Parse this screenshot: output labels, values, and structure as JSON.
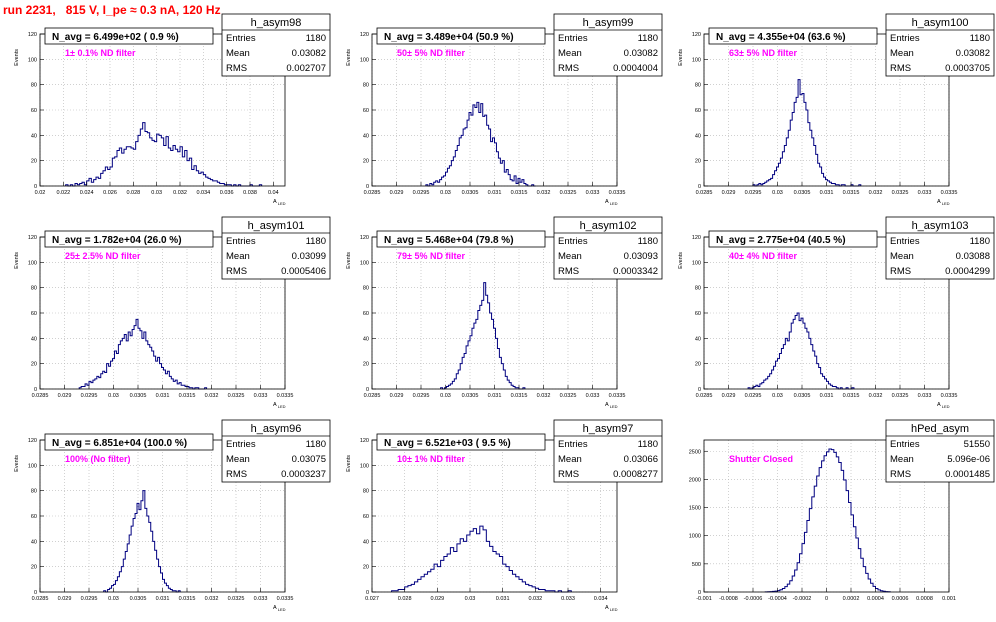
{
  "canvas_title": "run 2231,   815 V, I_pe ≈ 0.3 nA, 120 Hz",
  "colors": {
    "title": "#ff0000",
    "hist_line": "#000080",
    "filter_text": "#ff00ff",
    "grid": "#b4b4b4"
  },
  "chart_data": [
    {
      "type": "bar",
      "name": "h_asym98",
      "title": "N_avg = 6.499e+02 ( 0.9 %)",
      "annotation": "1± 0.1% ND filter",
      "stats": {
        "entries_label": "Entries",
        "entries": "1180",
        "mean_label": "Mean",
        "mean": "0.03082",
        "rms_label": "RMS",
        "rms": "0.002707"
      },
      "xlim": [
        0.02,
        0.041
      ],
      "ylim": [
        0,
        120
      ],
      "xticks": [
        0.02,
        0.022,
        0.024,
        0.026,
        0.028,
        0.03,
        0.032,
        0.034,
        0.036,
        0.038,
        0.04
      ],
      "xtick_labels": [
        "0.02",
        "0.022",
        "0.024",
        "0.026",
        "0.028",
        "0.03",
        "0.032",
        "0.034",
        "0.036",
        "0.038",
        "0.04"
      ],
      "yticks": [
        0,
        20,
        40,
        60,
        80,
        100,
        120
      ],
      "xlabel": "A_LED",
      "ylabel": "Events",
      "bin_start": 0.0222,
      "bin_width": 0.0002,
      "values": [
        1,
        0,
        1,
        0,
        2,
        1,
        2,
        3,
        1,
        4,
        6,
        3,
        5,
        7,
        6,
        10,
        12,
        15,
        13,
        15,
        22,
        23,
        28,
        30,
        26,
        29,
        31,
        31,
        30,
        29,
        35,
        40,
        45,
        50,
        43,
        42,
        38,
        36,
        35,
        41,
        40,
        38,
        32,
        39,
        30,
        28,
        32,
        29,
        27,
        31,
        23,
        28,
        20,
        22,
        13,
        16,
        12,
        10,
        11,
        9,
        7,
        6,
        5,
        4,
        4,
        3,
        2,
        2,
        1,
        1,
        1,
        0,
        1,
        0,
        1,
        0,
        0,
        0,
        0,
        1,
        0,
        0,
        0,
        1
      ]
    },
    {
      "type": "bar",
      "name": "h_asym99",
      "title": "N_avg = 3.489e+04 (50.9 %)",
      "annotation": "50± 5% ND filter",
      "stats": {
        "entries_label": "Entries",
        "entries": "1180",
        "mean_label": "Mean",
        "mean": "0.03082",
        "rms_label": "RMS",
        "rms": "0.0004004"
      },
      "xlim": [
        0.0285,
        0.0335
      ],
      "ylim": [
        0,
        120
      ],
      "xticks": [
        0.0285,
        0.029,
        0.0295,
        0.03,
        0.0305,
        0.031,
        0.0315,
        0.032,
        0.0325,
        0.033,
        0.0335
      ],
      "xtick_labels": [
        "0.0285",
        "0.029",
        "0.0295",
        "0.03",
        "0.0305",
        "0.031",
        "0.0315",
        "0.032",
        "0.0325",
        "0.033",
        "0.0335"
      ],
      "yticks": [
        0,
        20,
        40,
        60,
        80,
        100,
        120
      ],
      "xlabel": "A_LED",
      "ylabel": "Events",
      "bin_start": 0.0296,
      "bin_width": 4e-05,
      "values": [
        1,
        0,
        2,
        1,
        3,
        4,
        3,
        5,
        7,
        8,
        11,
        14,
        16,
        20,
        23,
        28,
        32,
        38,
        40,
        45,
        46,
        52,
        58,
        56,
        64,
        62,
        66,
        58,
        65,
        55,
        56,
        48,
        45,
        35,
        38,
        34,
        27,
        22,
        18,
        20,
        11,
        13,
        9,
        5,
        4,
        8,
        2,
        6,
        3,
        5,
        2,
        1,
        0,
        0,
        1,
        0
      ]
    },
    {
      "type": "bar",
      "name": "h_asym100",
      "title": "N_avg = 4.355e+04 (63.6 %)",
      "annotation": "63± 5% ND filter",
      "stats": {
        "entries_label": "Entries",
        "entries": "1180",
        "mean_label": "Mean",
        "mean": "0.03082",
        "rms_label": "RMS",
        "rms": "0.0003705"
      },
      "xlim": [
        0.0285,
        0.0335
      ],
      "ylim": [
        0,
        120
      ],
      "xticks": [
        0.0285,
        0.029,
        0.0295,
        0.03,
        0.0305,
        0.031,
        0.0315,
        0.032,
        0.0325,
        0.033,
        0.0335
      ],
      "xtick_labels": [
        "0.0285",
        "0.029",
        "0.0295",
        "0.03",
        "0.0305",
        "0.031",
        "0.0315",
        "0.032",
        "0.0325",
        "0.033",
        "0.0335"
      ],
      "yticks": [
        0,
        20,
        40,
        60,
        80,
        100,
        120
      ],
      "xlabel": "A_LED",
      "ylabel": "Events",
      "bin_start": 0.0295,
      "bin_width": 4e-05,
      "values": [
        1,
        0,
        1,
        2,
        1,
        2,
        3,
        4,
        5,
        6,
        9,
        12,
        15,
        18,
        22,
        27,
        32,
        38,
        44,
        52,
        58,
        66,
        70,
        84,
        72,
        73,
        66,
        60,
        50,
        44,
        38,
        32,
        25,
        18,
        15,
        10,
        7,
        5,
        4,
        3,
        2,
        2,
        1,
        1,
        0,
        1,
        1,
        0,
        0,
        0,
        1,
        0,
        0,
        0,
        1
      ]
    },
    {
      "type": "bar",
      "name": "h_asym101",
      "title": "N_avg = 1.782e+04 (26.0 %)",
      "annotation": "25± 2.5% ND filter",
      "stats": {
        "entries_label": "Entries",
        "entries": "1180",
        "mean_label": "Mean",
        "mean": "0.03099",
        "rms_label": "RMS",
        "rms": "0.0005406"
      },
      "xlim": [
        0.0285,
        0.0335
      ],
      "ylim": [
        0,
        120
      ],
      "xticks": [
        0.0285,
        0.029,
        0.0295,
        0.03,
        0.0305,
        0.031,
        0.0315,
        0.032,
        0.0325,
        0.033,
        0.0335
      ],
      "xtick_labels": [
        "0.0285",
        "0.029",
        "0.0295",
        "0.03",
        "0.0305",
        "0.031",
        "0.0315",
        "0.032",
        "0.0325",
        "0.033",
        "0.0335"
      ],
      "yticks": [
        0,
        20,
        40,
        60,
        80,
        100,
        120
      ],
      "xlabel": "A_LED",
      "ylabel": "Events",
      "bin_start": 0.0293,
      "bin_width": 4e-05,
      "values": [
        1,
        2,
        2,
        4,
        3,
        6,
        5,
        7,
        8,
        10,
        9,
        12,
        14,
        13,
        20,
        18,
        22,
        24,
        30,
        28,
        35,
        38,
        40,
        43,
        38,
        45,
        42,
        47,
        50,
        55,
        48,
        46,
        40,
        45,
        38,
        35,
        33,
        30,
        26,
        22,
        25,
        20,
        17,
        15,
        12,
        14,
        10,
        8,
        6,
        7,
        4,
        5,
        3,
        3,
        2,
        2,
        1,
        1,
        0,
        1,
        1,
        0,
        0,
        0,
        1
      ]
    },
    {
      "type": "bar",
      "name": "h_asym102",
      "title": "N_avg = 5.468e+04 (79.8 %)",
      "annotation": "79± 5% ND filter",
      "stats": {
        "entries_label": "Entries",
        "entries": "1180",
        "mean_label": "Mean",
        "mean": "0.03093",
        "rms_label": "RMS",
        "rms": "0.0003342"
      },
      "xlim": [
        0.0285,
        0.0335
      ],
      "ylim": [
        0,
        120
      ],
      "xticks": [
        0.0285,
        0.029,
        0.0295,
        0.03,
        0.0305,
        0.031,
        0.0315,
        0.032,
        0.0325,
        0.033,
        0.0335
      ],
      "xtick_labels": [
        "0.0285",
        "0.029",
        "0.0295",
        "0.03",
        "0.0305",
        "0.031",
        "0.0315",
        "0.032",
        "0.0325",
        "0.033",
        "0.0335"
      ],
      "yticks": [
        0,
        20,
        40,
        60,
        80,
        100,
        120
      ],
      "xlabel": "A_LED",
      "ylabel": "Events",
      "bin_start": 0.0299,
      "bin_width": 4e-05,
      "values": [
        1,
        0,
        1,
        2,
        3,
        4,
        6,
        8,
        12,
        15,
        20,
        25,
        28,
        34,
        38,
        42,
        48,
        52,
        55,
        62,
        66,
        70,
        84,
        74,
        68,
        60,
        55,
        48,
        40,
        32,
        25,
        20,
        15,
        10,
        7,
        5,
        3,
        2,
        1,
        1,
        0,
        0,
        1
      ]
    },
    {
      "type": "bar",
      "name": "h_asym103",
      "title": "N_avg = 2.775e+04 (40.5 %)",
      "annotation": "40± 4% ND filter",
      "stats": {
        "entries_label": "Entries",
        "entries": "1180",
        "mean_label": "Mean",
        "mean": "0.03088",
        "rms_label": "RMS",
        "rms": "0.0004299"
      },
      "xlim": [
        0.0285,
        0.0335
      ],
      "ylim": [
        0,
        120
      ],
      "xticks": [
        0.0285,
        0.029,
        0.0295,
        0.03,
        0.0305,
        0.031,
        0.0315,
        0.032,
        0.0325,
        0.033,
        0.0335
      ],
      "xtick_labels": [
        "0.0285",
        "0.029",
        "0.0295",
        "0.03",
        "0.0305",
        "0.031",
        "0.0315",
        "0.032",
        "0.0325",
        "0.033",
        "0.0335"
      ],
      "yticks": [
        0,
        20,
        40,
        60,
        80,
        100,
        120
      ],
      "xlabel": "A_LED",
      "ylabel": "Events",
      "bin_start": 0.0294,
      "bin_width": 4e-05,
      "values": [
        1,
        0,
        1,
        2,
        3,
        2,
        4,
        5,
        7,
        8,
        10,
        12,
        15,
        18,
        22,
        24,
        28,
        32,
        35,
        40,
        38,
        45,
        52,
        55,
        58,
        60,
        54,
        56,
        52,
        48,
        45,
        40,
        35,
        30,
        26,
        20,
        17,
        12,
        10,
        8,
        6,
        4,
        3,
        2,
        2,
        1,
        0,
        1,
        0,
        0,
        1,
        0,
        0,
        1
      ]
    },
    {
      "type": "bar",
      "name": "h_asym96",
      "title": "N_avg = 6.851e+04 (100.0 %)",
      "annotation": "100% (No filter)",
      "stats": {
        "entries_label": "Entries",
        "entries": "1180",
        "mean_label": "Mean",
        "mean": "0.03075",
        "rms_label": "RMS",
        "rms": "0.0003237"
      },
      "xlim": [
        0.0285,
        0.0335
      ],
      "ylim": [
        0,
        120
      ],
      "xticks": [
        0.0285,
        0.029,
        0.0295,
        0.03,
        0.0305,
        0.031,
        0.0315,
        0.032,
        0.0325,
        0.033,
        0.0335
      ],
      "xtick_labels": [
        "0.0285",
        "0.029",
        "0.0295",
        "0.03",
        "0.0305",
        "0.031",
        "0.0315",
        "0.032",
        "0.0325",
        "0.033",
        "0.0335"
      ],
      "yticks": [
        0,
        20,
        40,
        60,
        80,
        100,
        120
      ],
      "xlabel": "A_LED",
      "ylabel": "Events",
      "bin_start": 0.0298,
      "bin_width": 4e-05,
      "values": [
        1,
        0,
        2,
        3,
        5,
        6,
        9,
        12,
        16,
        20,
        26,
        32,
        38,
        45,
        52,
        58,
        62,
        70,
        65,
        72,
        80,
        66,
        60,
        55,
        48,
        40,
        33,
        26,
        20,
        15,
        10,
        7,
        5,
        3,
        2,
        1,
        1,
        0,
        1
      ]
    },
    {
      "type": "bar",
      "name": "h_asym97",
      "title": "N_avg = 6.521e+03 ( 9.5 %)",
      "annotation": "10± 1% ND filter",
      "stats": {
        "entries_label": "Entries",
        "entries": "1180",
        "mean_label": "Mean",
        "mean": "0.03066",
        "rms_label": "RMS",
        "rms": "0.0008277"
      },
      "xlim": [
        0.027,
        0.0345
      ],
      "ylim": [
        0,
        120
      ],
      "xticks": [
        0.027,
        0.028,
        0.029,
        0.03,
        0.031,
        0.032,
        0.033,
        0.034
      ],
      "xtick_labels": [
        "0.027",
        "0.028",
        "0.029",
        "0.03",
        "0.031",
        "0.032",
        "0.033",
        "0.034"
      ],
      "yticks": [
        0,
        20,
        40,
        60,
        80,
        100,
        120
      ],
      "xlabel": "A_LED",
      "ylabel": "Events",
      "bin_start": 0.0276,
      "bin_width": 0.0001,
      "values": [
        1,
        1,
        2,
        2,
        4,
        5,
        6,
        8,
        10,
        12,
        14,
        16,
        18,
        22,
        20,
        25,
        28,
        30,
        35,
        32,
        38,
        42,
        40,
        45,
        48,
        50,
        46,
        52,
        49,
        40,
        36,
        32,
        30,
        28,
        22,
        20,
        17,
        14,
        12,
        10,
        8,
        6,
        5,
        4,
        3,
        2,
        2,
        1,
        1,
        1,
        0,
        1,
        0,
        0,
        1
      ]
    },
    {
      "type": "bar",
      "name": "hPed_asym",
      "title": "",
      "annotation": "Shutter Closed",
      "stats": {
        "entries_label": "Entries",
        "entries": "51550",
        "mean_label": "Mean",
        "mean": "5.096e-06",
        "rms_label": "RMS",
        "rms": "0.0001485"
      },
      "xlim": [
        -0.001,
        0.001
      ],
      "ylim": [
        0,
        2700
      ],
      "xticks": [
        -0.001,
        -0.0008,
        -0.0006,
        -0.0004,
        -0.0002,
        0,
        0.0002,
        0.0004,
        0.0006,
        0.0008,
        0.001
      ],
      "xtick_labels": [
        "-0.001",
        "-0.0008",
        "-0.0006",
        "-0.0004",
        "-0.0002",
        "0",
        "0.0002",
        "0.0004",
        "0.0006",
        "0.0008",
        "0.001"
      ],
      "yticks": [
        0,
        500,
        1000,
        1500,
        2000,
        2500
      ],
      "xlabel": "",
      "ylabel": "",
      "bin_start": -0.0005,
      "bin_width": 2e-05,
      "values": [
        2,
        4,
        6,
        10,
        16,
        25,
        40,
        62,
        95,
        140,
        200,
        285,
        390,
        520,
        680,
        860,
        1060,
        1270,
        1480,
        1690,
        1880,
        2060,
        2210,
        2330,
        2420,
        2490,
        2540,
        2530,
        2480,
        2400,
        2300,
        2160,
        1990,
        1800,
        1590,
        1370,
        1160,
        960,
        770,
        600,
        450,
        330,
        230,
        155,
        100,
        62,
        38,
        22,
        13,
        7,
        4
      ]
    }
  ]
}
